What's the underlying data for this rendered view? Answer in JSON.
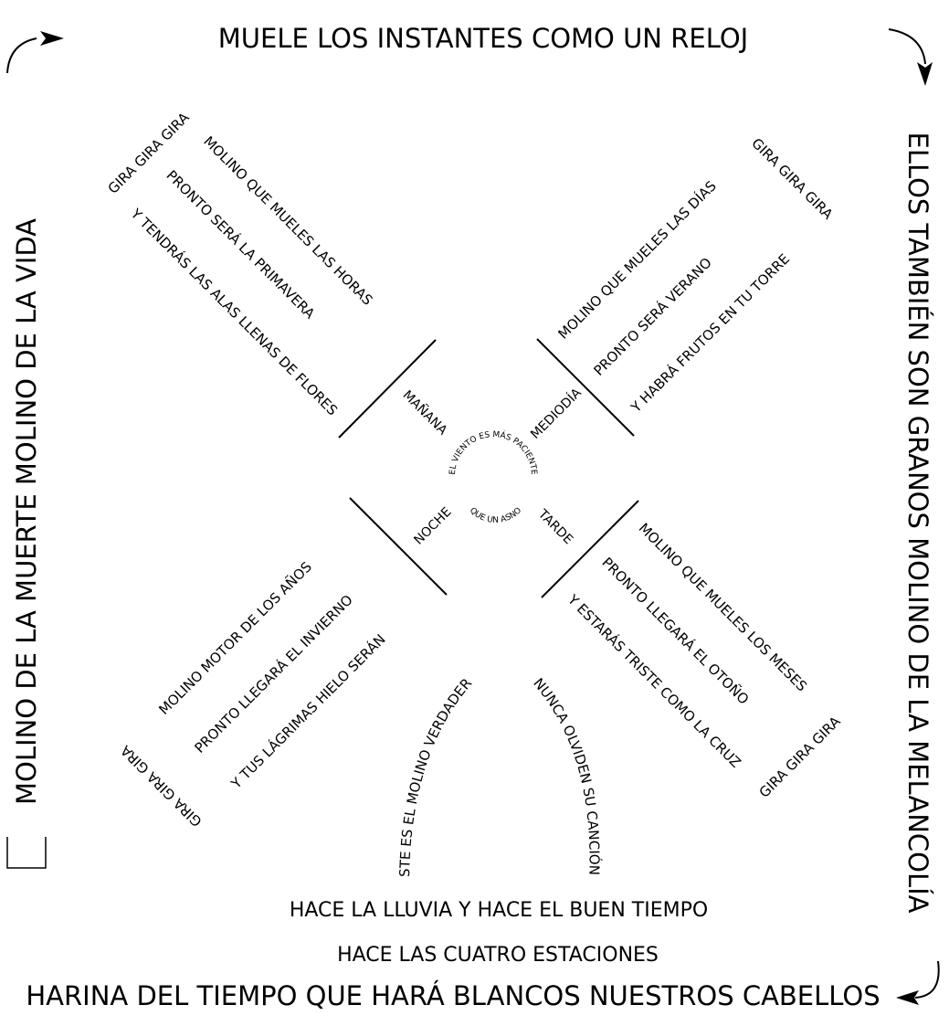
{
  "frame": {
    "top": "MUELE LOS INSTANTES COMO UN RELOJ",
    "right": "ELLOS TAMBIÉN SON GRANOS MOLINO DE LA MELANCOLÍA",
    "left": "MOLINO DE LA MUERTE MOLINO DE LA VIDA",
    "bottom": "HARINA DEL TIEMPO QUE HARÁ BLANCOS NUESTROS CABELLOS",
    "bottom_line1": "HACE LA LLUVIA Y HACE EL BUEN TIEMPO",
    "bottom_line2": "HACE LAS CUATRO ESTACIONES"
  },
  "center": {
    "arc_upper": "EL VIENTO ES MÁS PACIENTE",
    "arc_lower": "QUE UN ASNO"
  },
  "times_of_day": {
    "morning": "MAÑANA",
    "noon": "MEDIODÍA",
    "evening": "TARDE",
    "night": "NOCHE"
  },
  "arms": {
    "top_left": {
      "chant": "GIRA GIRA GIRA",
      "line1": "MOLINO QUE MUELES LAS HORAS",
      "line2": "PRONTO SERÁ LA PRIMAVERA",
      "line3": "Y TENDRÁS LAS ALAS LLENAS DE FLORES"
    },
    "top_right": {
      "chant": "GIRA GIRA GIRA",
      "line1": "MOLINO QUE MUELES LAS DÍAS",
      "line2": "PRONTO SERÁ VERANO",
      "line3": "Y HABRÁ FRUTOS EN TU TORRE"
    },
    "bottom_right": {
      "chant": "GIRA GIRA GIRA",
      "line1": "MOLINO QUE MUELES LOS MESES",
      "line2": "PRONTO LLEGARÁ EL OTOÑO",
      "line3": "Y ESTARÁS TRISTE COMO LA CRUZ"
    },
    "bottom_left": {
      "chant": "GIRA GIRA GIRA",
      "line1": "MOLINO MOTOR DE LOS AÑOS",
      "line2": "PRONTO LLEGARÁ EL INVIERNO",
      "line3": "Y TUS LÁGRIMAS HIELO SERÁN"
    }
  },
  "base": {
    "left_curve": "ESTE ES EL MOLINO VERDADERO",
    "right_curve": "NUNCA OLVIDEN SU CANCIÓN"
  }
}
